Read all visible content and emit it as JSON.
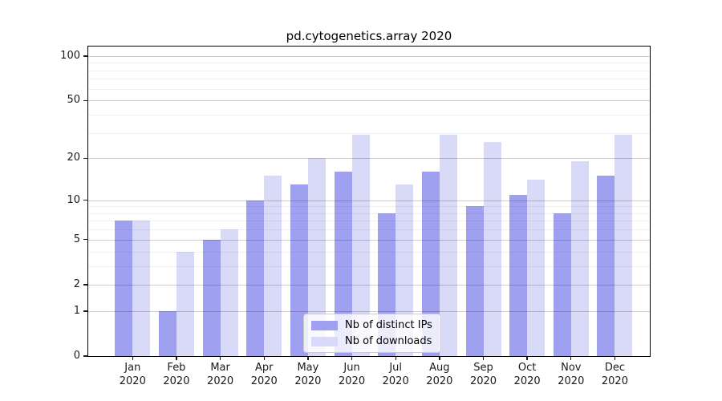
{
  "title": "pd.cytogenetics.array 2020",
  "chart_data": {
    "type": "bar",
    "title": "pd.cytogenetics.array 2020",
    "categories": [
      "Jan",
      "Feb",
      "Mar",
      "Apr",
      "May",
      "Jun",
      "Jul",
      "Aug",
      "Sep",
      "Oct",
      "Nov",
      "Dec"
    ],
    "x_tick_second_line": "2020",
    "series": [
      {
        "name": "Nb of distinct IPs",
        "color": "#a0a0f0",
        "values": [
          7,
          1,
          5,
          10,
          13,
          16,
          8,
          16,
          9,
          11,
          8,
          15
        ]
      },
      {
        "name": "Nb of downloads",
        "color": "#d9d9f8",
        "values": [
          7,
          4,
          6,
          15,
          20,
          29,
          13,
          29,
          26,
          14,
          19,
          29
        ]
      }
    ],
    "xlabel": "",
    "ylabel": "",
    "yaxis": {
      "scale": "log1p",
      "max": 116,
      "major_ticks": [
        0,
        1,
        2,
        5,
        10,
        20,
        50,
        100
      ],
      "minor_gridlines": [
        3,
        4,
        6,
        7,
        8,
        9,
        30,
        40,
        60,
        70,
        80,
        90
      ]
    },
    "grid": true,
    "legend_position": "lower center"
  }
}
